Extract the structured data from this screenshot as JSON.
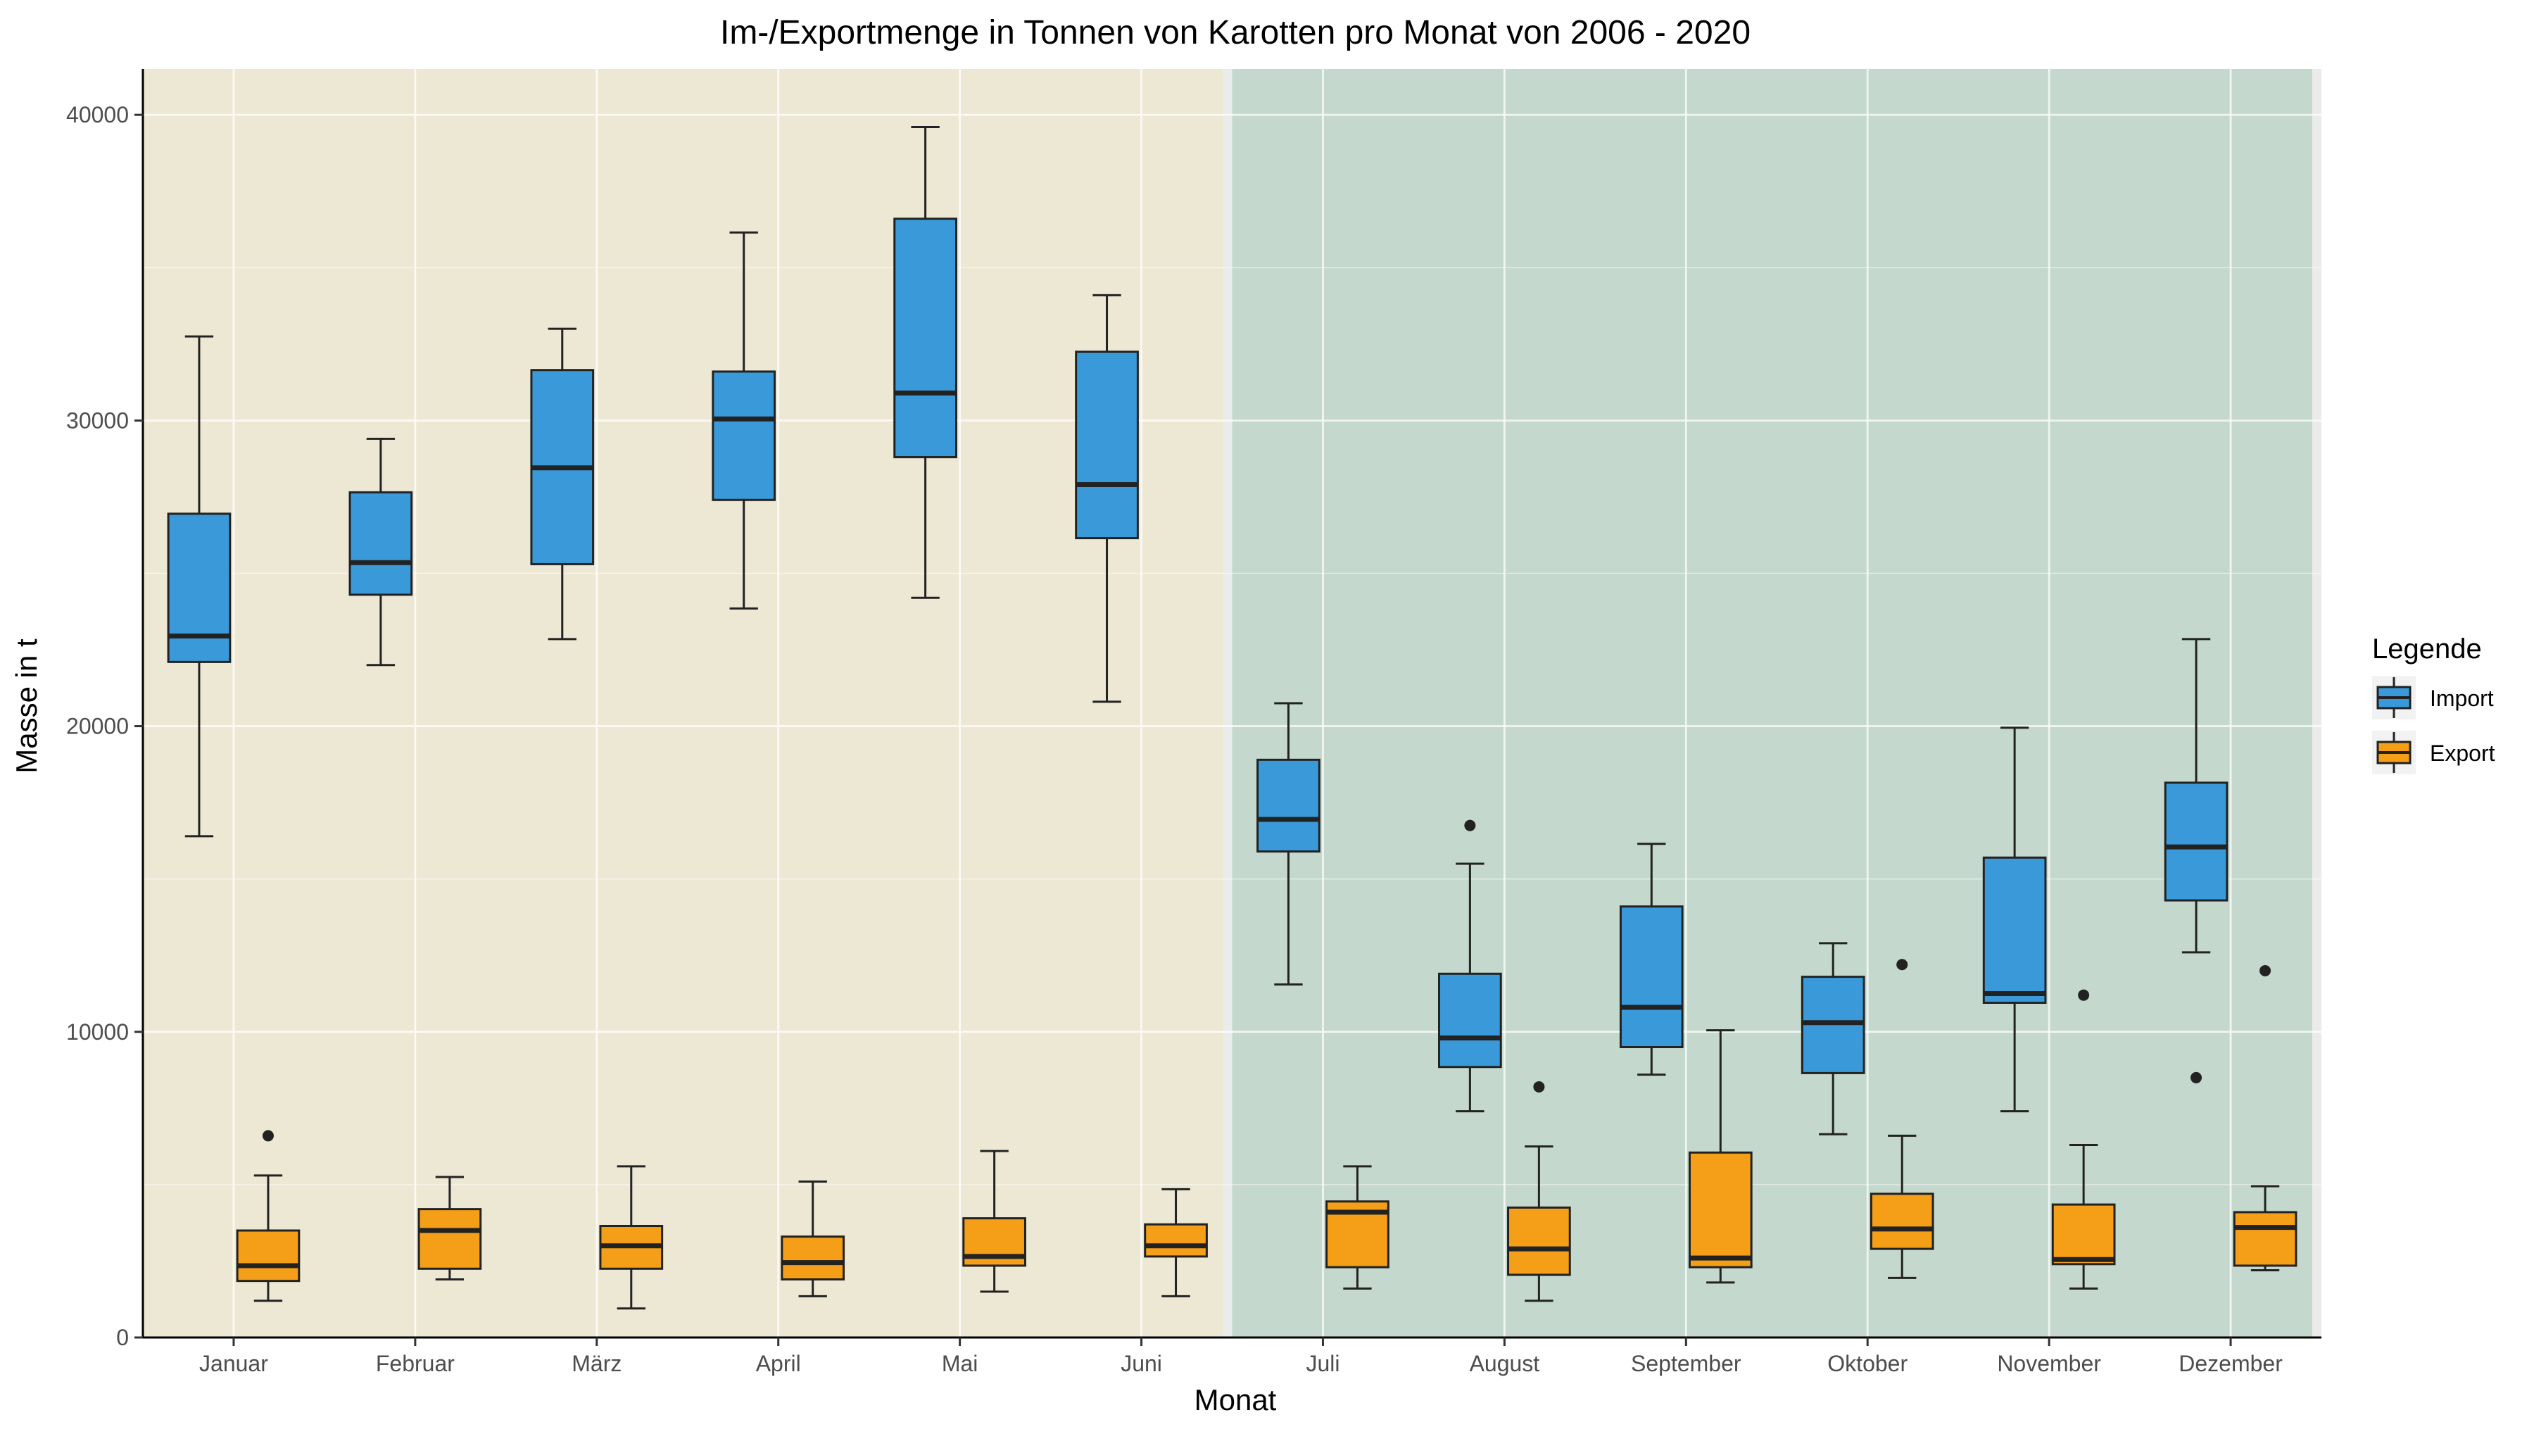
{
  "chart_data": {
    "type": "boxplot",
    "title": "Im-/Exportmenge in Tonnen von Karotten pro Monat von 2006 - 2020",
    "xlabel": "Monat",
    "ylabel": "Masse in t",
    "ylim": [
      0,
      41500
    ],
    "yticks": [
      0,
      10000,
      20000,
      30000,
      40000
    ],
    "categories": [
      "Januar",
      "Februar",
      "März",
      "April",
      "Mai",
      "Juni",
      "Juli",
      "August",
      "September",
      "Oktober",
      "November",
      "Dezember"
    ],
    "background_bands": [
      {
        "from_category": "Januar",
        "to_category": "Juni",
        "color": "#ede8d4"
      },
      {
        "from_category": "Juli",
        "to_category": "Dezember",
        "color": "#c4d8cd"
      }
    ],
    "legend": {
      "title": "Legende",
      "position": "right"
    },
    "series": [
      {
        "name": "Import",
        "color": "#3a9ad9",
        "boxes": [
          {
            "min": 16400,
            "q1": 22100,
            "median": 22950,
            "q3": 26950,
            "max": 32750,
            "outliers": []
          },
          {
            "min": 22000,
            "q1": 24300,
            "median": 25350,
            "q3": 27650,
            "max": 29400,
            "outliers": []
          },
          {
            "min": 22850,
            "q1": 25300,
            "median": 28450,
            "q3": 31650,
            "max": 33000,
            "outliers": []
          },
          {
            "min": 23850,
            "q1": 27400,
            "median": 30050,
            "q3": 31600,
            "max": 36150,
            "outliers": []
          },
          {
            "min": 24200,
            "q1": 28800,
            "median": 30900,
            "q3": 36600,
            "max": 39600,
            "outliers": []
          },
          {
            "min": 20800,
            "q1": 26150,
            "median": 27900,
            "q3": 32250,
            "max": 34100,
            "outliers": []
          },
          {
            "min": 11550,
            "q1": 15900,
            "median": 16950,
            "q3": 18900,
            "max": 20750,
            "outliers": []
          },
          {
            "min": 7400,
            "q1": 8850,
            "median": 9800,
            "q3": 11900,
            "max": 15500,
            "outliers": [
              16750
            ]
          },
          {
            "min": 8600,
            "q1": 9500,
            "median": 10800,
            "q3": 14100,
            "max": 16150,
            "outliers": []
          },
          {
            "min": 6650,
            "q1": 8650,
            "median": 10300,
            "q3": 11800,
            "max": 12900,
            "outliers": []
          },
          {
            "min": 7400,
            "q1": 10950,
            "median": 11250,
            "q3": 15700,
            "max": 19950,
            "outliers": []
          },
          {
            "min": 12600,
            "q1": 14300,
            "median": 16050,
            "q3": 18150,
            "max": 22850,
            "outliers": [
              8500
            ]
          }
        ]
      },
      {
        "name": "Export",
        "color": "#f59e17",
        "boxes": [
          {
            "min": 1200,
            "q1": 1850,
            "median": 2350,
            "q3": 3500,
            "max": 5300,
            "outliers": [
              6600
            ]
          },
          {
            "min": 1900,
            "q1": 2250,
            "median": 3500,
            "q3": 4200,
            "max": 5250,
            "outliers": []
          },
          {
            "min": 950,
            "q1": 2250,
            "median": 3000,
            "q3": 3650,
            "max": 5600,
            "outliers": []
          },
          {
            "min": 1350,
            "q1": 1900,
            "median": 2450,
            "q3": 3300,
            "max": 5100,
            "outliers": []
          },
          {
            "min": 1500,
            "q1": 2350,
            "median": 2650,
            "q3": 3900,
            "max": 6100,
            "outliers": []
          },
          {
            "min": 1350,
            "q1": 2650,
            "median": 3000,
            "q3": 3700,
            "max": 4850,
            "outliers": []
          },
          {
            "min": 1600,
            "q1": 2300,
            "median": 4100,
            "q3": 4450,
            "max": 5600,
            "outliers": []
          },
          {
            "min": 1200,
            "q1": 2050,
            "median": 2900,
            "q3": 4250,
            "max": 6250,
            "outliers": [
              8200
            ]
          },
          {
            "min": 1800,
            "q1": 2300,
            "median": 2600,
            "q3": 6050,
            "max": 10050,
            "outliers": []
          },
          {
            "min": 1950,
            "q1": 2900,
            "median": 3550,
            "q3": 4700,
            "max": 6600,
            "outliers": [
              12200
            ]
          },
          {
            "min": 1600,
            "q1": 2400,
            "median": 2550,
            "q3": 4350,
            "max": 6300,
            "outliers": [
              11200
            ]
          },
          {
            "min": 2200,
            "q1": 2350,
            "median": 3600,
            "q3": 4100,
            "max": 4950,
            "outliers": [
              12000
            ]
          }
        ]
      }
    ]
  }
}
